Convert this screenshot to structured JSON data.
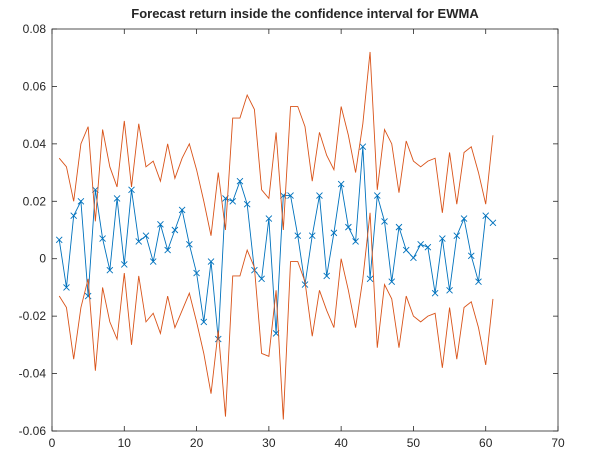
{
  "chart_data": {
    "type": "line",
    "title": "Forecast return inside the confidence interval for EWMA",
    "x": [
      1,
      2,
      3,
      4,
      5,
      6,
      7,
      8,
      9,
      10,
      11,
      12,
      13,
      14,
      15,
      16,
      17,
      18,
      19,
      20,
      21,
      22,
      23,
      24,
      25,
      26,
      27,
      28,
      29,
      30,
      31,
      32,
      33,
      34,
      35,
      36,
      37,
      38,
      39,
      40,
      41,
      42,
      43,
      44,
      45,
      46,
      47,
      48,
      49,
      50,
      51,
      52,
      53,
      54,
      55,
      56,
      57,
      58,
      59,
      60,
      61
    ],
    "series": [
      {
        "color": "#0072bd",
        "marker": "x",
        "values": [
          0.0066,
          -0.01,
          0.015,
          0.02,
          -0.013,
          0.024,
          0.007,
          -0.004,
          0.021,
          -0.002,
          0.024,
          0.006,
          0.008,
          -0.001,
          0.012,
          0.003,
          0.01,
          0.017,
          0.005,
          -0.005,
          -0.022,
          -0.001,
          -0.028,
          0.021,
          0.02,
          0.027,
          0.019,
          -0.004,
          -0.007,
          0.014,
          -0.026,
          0.022,
          0.022,
          0.008,
          -0.009,
          0.008,
          0.022,
          -0.006,
          0.009,
          0.026,
          0.011,
          0.006,
          0.039,
          -0.007,
          0.022,
          0.013,
          -0.008,
          0.011,
          0.003,
          0.0003,
          0.005,
          0.004,
          -0.012,
          0.007,
          -0.011,
          0.008,
          0.014,
          0.001,
          -0.008,
          0.015,
          0.0125
        ]
      },
      {
        "color": "#d95319",
        "values": [
          0.035,
          0.032,
          0.02,
          0.04,
          0.046,
          0.013,
          0.045,
          0.032,
          0.025,
          0.048,
          0.025,
          0.047,
          0.032,
          0.034,
          0.027,
          0.04,
          0.028,
          0.035,
          0.04,
          0.031,
          0.02,
          0.008,
          0.03,
          0.01,
          0.049,
          0.049,
          0.057,
          0.052,
          0.024,
          0.021,
          0.044,
          0.01,
          0.053,
          0.053,
          0.046,
          0.027,
          0.044,
          0.036,
          0.031,
          0.053,
          0.043,
          0.03,
          0.047,
          0.072,
          0.024,
          0.045,
          0.04,
          0.023,
          0.041,
          0.034,
          0.032,
          0.034,
          0.035,
          0.016,
          0.037,
          0.019,
          0.037,
          0.039,
          0.03,
          0.019,
          0.043
        ]
      },
      {
        "color": "#d95319",
        "values": [
          -0.013,
          -0.017,
          -0.035,
          -0.017,
          -0.007,
          -0.039,
          -0.01,
          -0.022,
          -0.028,
          -0.005,
          -0.03,
          -0.006,
          -0.022,
          -0.019,
          -0.026,
          -0.013,
          -0.024,
          -0.018,
          -0.012,
          -0.022,
          -0.033,
          -0.047,
          -0.025,
          -0.055,
          -0.006,
          -0.006,
          0.003,
          -0.003,
          -0.033,
          -0.034,
          -0.011,
          -0.056,
          -0.001,
          -0.001,
          -0.008,
          -0.027,
          -0.011,
          -0.018,
          -0.024,
          0.0,
          -0.011,
          -0.024,
          -0.007,
          0.016,
          -0.031,
          -0.009,
          -0.014,
          -0.031,
          -0.013,
          -0.02,
          -0.022,
          -0.02,
          -0.019,
          -0.038,
          -0.017,
          -0.035,
          -0.017,
          -0.015,
          -0.024,
          -0.037,
          -0.014
        ]
      }
    ],
    "xlim": [
      0,
      70
    ],
    "xticks": [
      0,
      10,
      20,
      30,
      40,
      50,
      60,
      70
    ],
    "ylim": [
      -0.06,
      0.08
    ],
    "yticks": [
      -0.06,
      -0.04,
      -0.02,
      0,
      0.02,
      0.04,
      0.06,
      0.08
    ],
    "grid": false
  }
}
